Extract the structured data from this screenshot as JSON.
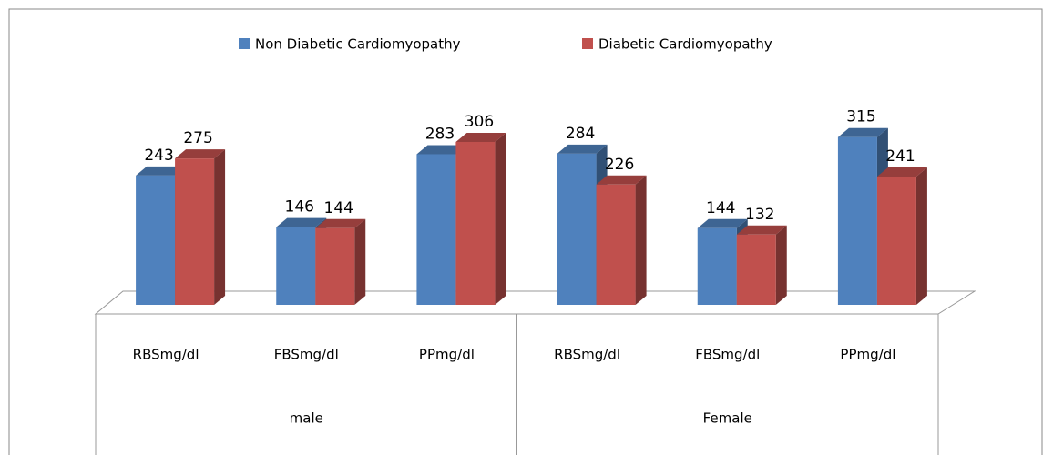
{
  "chart_data": {
    "type": "bar",
    "categories": [
      "RBSmg/dl",
      "FBSmg/dl",
      "PPmg/dl",
      "RBSmg/dl",
      "FBSmg/dl",
      "PPmg/dl"
    ],
    "groups": [
      "male",
      "Female"
    ],
    "series": [
      {
        "name": "Non Diabetic Cardiomyopathy",
        "color": "#4f81bd",
        "values": [
          243,
          146,
          283,
          284,
          144,
          315
        ]
      },
      {
        "name": "Diabetic Cardiomyopathy",
        "color": "#c0504d",
        "values": [
          275,
          144,
          306,
          226,
          132,
          241
        ]
      }
    ],
    "legend": "top"
  }
}
